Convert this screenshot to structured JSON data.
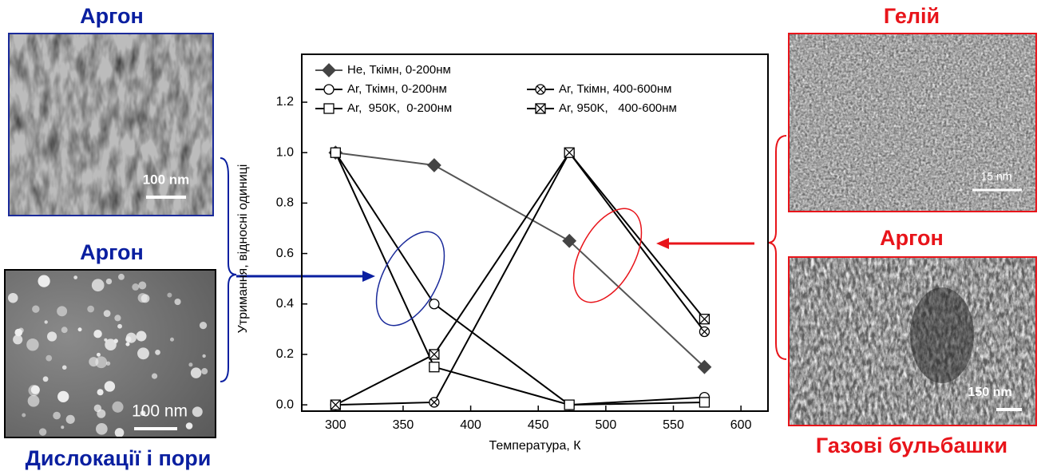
{
  "chart_data": {
    "type": "line",
    "xlabel": "Температура, К",
    "ylabel": "Утримання, відносні одиниці",
    "x": [
      300,
      373,
      473,
      573
    ],
    "series": [
      {
        "name": "He, Ткімн, 0-200нм",
        "color": "#555555",
        "marker": "diamond",
        "values": [
          1.0,
          0.95,
          0.65,
          0.15
        ]
      },
      {
        "name": "Ar, Ткімн, 0-200нм",
        "color": "#000000",
        "marker": "circle",
        "values": [
          1.0,
          0.4,
          0.0,
          0.03
        ]
      },
      {
        "name": "Ar,  950K,  0-200нм",
        "color": "#000000",
        "marker": "square",
        "values": [
          1.0,
          0.15,
          0.0,
          0.01
        ]
      },
      {
        "name": "Ar, Ткімн, 400-600нм",
        "color": "#000000",
        "marker": "crossed-circle",
        "values": [
          0.0,
          0.01,
          1.0,
          0.29
        ]
      },
      {
        "name": "Ar, 950K,   400-600нм",
        "color": "#000000",
        "marker": "crossed-square",
        "values": [
          0.0,
          0.2,
          1.0,
          0.34
        ]
      }
    ],
    "xlim": [
      275,
      620
    ],
    "ylim": [
      -0.025,
      1.39
    ],
    "xticks": [
      300,
      350,
      400,
      450,
      500,
      550,
      600
    ],
    "yticks": [
      {
        "value": 0,
        "label": "0.0"
      },
      {
        "value": 0.2,
        "label": "0.2"
      },
      {
        "value": 0.4,
        "label": "0.4"
      },
      {
        "value": 0.6,
        "label": "0.6"
      },
      {
        "value": 0.8,
        "label": "0.8"
      },
      {
        "value": 1.0,
        "label": "1.0"
      },
      {
        "value": 1.2,
        "label": "1.2"
      }
    ]
  },
  "panels": {
    "top_left": {
      "title": "Аргон",
      "scale": "100 nm"
    },
    "bottom_left": {
      "title": "Аргон",
      "scale": "100 nm",
      "caption": "Дислокації і пори"
    },
    "top_right": {
      "title": "Гелій",
      "scale": "15 nm"
    },
    "bottom_right": {
      "title": "Аргон",
      "scale": "150 nm",
      "caption": "Газові бульбашки"
    }
  }
}
